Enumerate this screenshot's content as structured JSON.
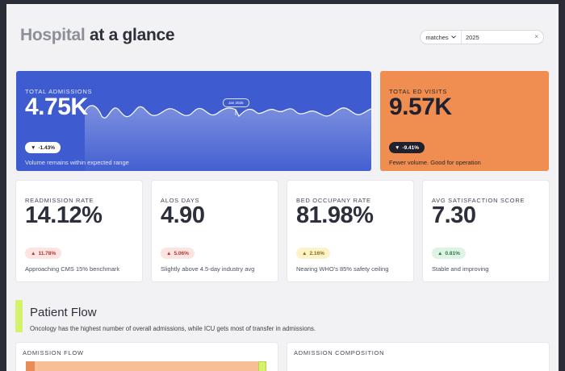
{
  "header": {
    "title_part1": "Hospital",
    "title_part2": "at a glance",
    "filter": {
      "mode": "matches",
      "value": "2025",
      "clear_icon": "×"
    }
  },
  "hero_cards": [
    {
      "label": "TOTAL ADMISSIONS",
      "value": "4.75K",
      "change": "-1.43%",
      "change_icon": "▼",
      "note": "Volume remains within expected range",
      "tooltip": "Jan 2025",
      "color": "#3e5bd0"
    },
    {
      "label": "TOTAL ED VISITS",
      "value": "9.57K",
      "change": "-9.41%",
      "change_icon": "▼",
      "note": "Fewer volume. Good for operation",
      "color": "#f08e52"
    }
  ],
  "kpis": [
    {
      "label": "READMISSION RATE",
      "value": "14.12%",
      "change": "11.78%",
      "change_icon": "▲",
      "status": "red",
      "note": "Approaching CMS 15% benchmark"
    },
    {
      "label": "ALOS DAYS",
      "value": "4.90",
      "change": "5.06%",
      "change_icon": "▲",
      "status": "red",
      "note": "Slightly above 4.5-day industry avg"
    },
    {
      "label": "BED OCCUPANY RATE",
      "value": "81.98%",
      "change": "2.16%",
      "change_icon": "▲",
      "status": "yellow",
      "note": "Nearing WHO's 85% safety ceiling"
    },
    {
      "label": "AVG SATISFACTION SCORE",
      "value": "7.30",
      "change": "0.81%",
      "change_icon": "▲",
      "status": "green",
      "note": "Stable and improving"
    }
  ],
  "section": {
    "title": "Patient Flow",
    "subtitle": "Oncology has the highest number of overall admissions, while ICU gets most of transfer in admissions."
  },
  "panels": {
    "flow_title": "ADMISSION FLOW",
    "composition_title": "ADMISSION COMPOSITION"
  }
}
